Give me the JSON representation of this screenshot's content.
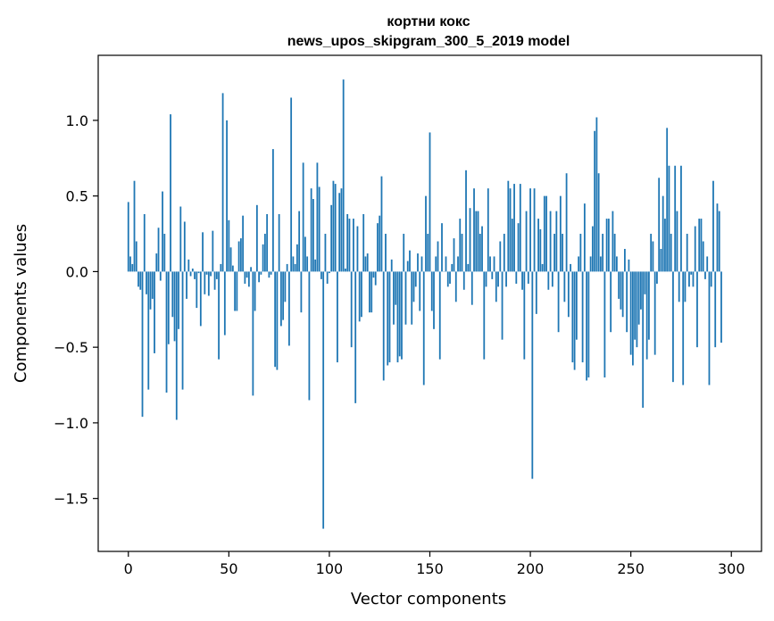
{
  "chart_data": {
    "type": "bar",
    "title_line1": "кортни кокс",
    "title_line2": "news_upos_skipgram_300_5_2019 model",
    "xlabel": "Vector components",
    "ylabel": "Components values",
    "xlim": [
      -15,
      315
    ],
    "ylim": [
      -1.85,
      1.43
    ],
    "xticks": [
      0,
      50,
      100,
      150,
      200,
      250,
      300
    ],
    "yticks": [
      -1.5,
      -1.0,
      -0.5,
      0.0,
      0.5,
      1.0
    ],
    "ytick_labels": [
      "−1.5",
      "−1.0",
      "−0.5",
      "0.0",
      "0.5",
      "1.0"
    ],
    "grid": false,
    "bar_color": "#1f77b4",
    "values": [
      0.46,
      0.1,
      0.05,
      0.6,
      0.2,
      -0.1,
      -0.12,
      -0.96,
      0.38,
      -0.15,
      -0.78,
      -0.25,
      -0.18,
      -0.54,
      0.12,
      0.29,
      -0.06,
      0.53,
      0.25,
      -0.8,
      -0.48,
      1.04,
      -0.3,
      -0.46,
      -0.98,
      -0.38,
      0.43,
      -0.78,
      0.33,
      -0.18,
      0.08,
      -0.03,
      0.02,
      -0.05,
      -0.24,
      -0.01,
      -0.36,
      0.26,
      -0.15,
      -0.02,
      -0.16,
      -0.03,
      0.27,
      -0.12,
      -0.05,
      -0.58,
      0.05,
      1.18,
      -0.42,
      1.0,
      0.34,
      0.16,
      0.04,
      -0.26,
      -0.26,
      0.2,
      0.22,
      0.37,
      -0.08,
      -0.04,
      -0.1,
      0.03,
      -0.82,
      -0.26,
      0.44,
      -0.07,
      -0.02,
      0.18,
      0.25,
      0.38,
      -0.04,
      -0.02,
      0.81,
      -0.63,
      -0.65,
      0.38,
      -0.36,
      -0.32,
      -0.2,
      0.05,
      -0.49,
      1.15,
      0.1,
      0.05,
      0.18,
      0.4,
      -0.27,
      0.72,
      0.23,
      0.1,
      -0.85,
      0.55,
      0.48,
      0.08,
      0.72,
      0.56,
      -0.05,
      -1.7,
      0.25,
      -0.08,
      -0.01,
      0.44,
      0.6,
      0.58,
      -0.6,
      0.52,
      0.55,
      1.27,
      0.02,
      0.38,
      0.35,
      -0.5,
      0.35,
      -0.87,
      0.3,
      -0.33,
      -0.3,
      0.38,
      0.1,
      0.12,
      -0.27,
      -0.27,
      -0.04,
      -0.09,
      0.32,
      0.37,
      0.63,
      -0.72,
      0.25,
      -0.62,
      -0.6,
      0.08,
      -0.35,
      -0.22,
      -0.6,
      -0.56,
      -0.58,
      0.25,
      -0.35,
      0.07,
      0.14,
      -0.35,
      -0.2,
      -0.1,
      0.12,
      -0.26,
      0.1,
      -0.75,
      0.5,
      0.25,
      0.92,
      -0.26,
      -0.38,
      0.1,
      0.2,
      -0.58,
      0.32,
      0.0,
      0.1,
      -0.1,
      -0.08,
      0.05,
      0.22,
      -0.2,
      0.1,
      0.35,
      0.25,
      -0.12,
      0.67,
      0.05,
      0.42,
      -0.22,
      0.55,
      0.4,
      0.4,
      0.25,
      0.3,
      -0.58,
      -0.1,
      0.55,
      0.1,
      -0.05,
      0.1,
      -0.2,
      -0.1,
      0.2,
      -0.45,
      0.25,
      -0.1,
      0.6,
      0.55,
      0.35,
      0.58,
      -0.08,
      0.32,
      0.58,
      -0.12,
      -0.58,
      0.4,
      -0.08,
      0.55,
      -1.37,
      0.55,
      -0.28,
      0.35,
      0.28,
      0.05,
      0.5,
      0.5,
      -0.12,
      0.4,
      -0.1,
      0.25,
      0.4,
      -0.4,
      0.5,
      0.25,
      -0.2,
      0.65,
      -0.3,
      0.05,
      -0.6,
      -0.65,
      -0.45,
      0.1,
      0.25,
      -0.6,
      0.45,
      -0.72,
      -0.7,
      0.1,
      0.3,
      0.93,
      1.02,
      0.65,
      0.1,
      0.25,
      -0.7,
      0.35,
      0.35,
      -0.4,
      0.4,
      0.25,
      0.1,
      -0.18,
      -0.25,
      -0.3,
      0.15,
      -0.4,
      0.08,
      -0.55,
      -0.62,
      -0.45,
      -0.5,
      -0.35,
      -0.25,
      -0.9,
      -0.15,
      -0.58,
      -0.45,
      0.25,
      0.2,
      -0.55,
      -0.08,
      0.62,
      0.15,
      0.5,
      0.35,
      0.95,
      0.7,
      0.25,
      -0.73,
      0.7,
      0.4,
      -0.2,
      0.7,
      -0.75,
      -0.2,
      0.25,
      -0.1,
      -0.02,
      -0.1,
      0.3,
      -0.5,
      0.35,
      0.35,
      0.2,
      -0.05,
      0.1,
      -0.75,
      -0.1,
      0.6,
      -0.5,
      0.45,
      0.4,
      -0.47
    ]
  }
}
